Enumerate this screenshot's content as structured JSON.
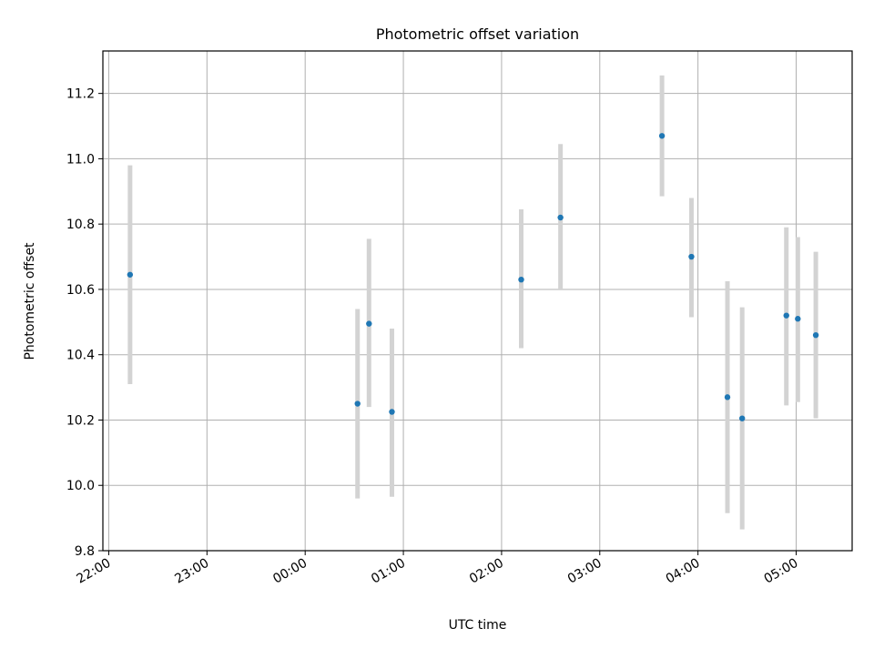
{
  "chart_data": {
    "type": "scatter",
    "title": "Photometric offset variation",
    "xlabel": "UTC time",
    "ylabel": "Photometric offset",
    "x_axis": "time (hours relative to 00:00 UTC; ticks labelled HH:MM)",
    "xlim": [
      -2.06,
      5.57
    ],
    "ylim": [
      9.8,
      11.33
    ],
    "x_ticks": [
      "22:00",
      "23:00",
      "00:00",
      "01:00",
      "02:00",
      "03:00",
      "04:00",
      "05:00"
    ],
    "x_tick_values": [
      -2,
      -1,
      0,
      1,
      2,
      3,
      4,
      5
    ],
    "y_ticks": [
      "9.8",
      "10.0",
      "10.2",
      "10.4",
      "10.6",
      "10.8",
      "11.0",
      "11.2"
    ],
    "y_tick_values": [
      9.8,
      10.0,
      10.2,
      10.4,
      10.6,
      10.8,
      11.0,
      11.2
    ],
    "grid": true,
    "marker_color": "#1f77b4",
    "errorbar_color": "#d3d3d3",
    "points": [
      {
        "time": "22:13",
        "y": 10.645,
        "ylow": 10.31,
        "yhigh": 10.98
      },
      {
        "time": "00:32",
        "y": 10.25,
        "ylow": 9.96,
        "yhigh": 10.54
      },
      {
        "time": "00:39",
        "y": 10.495,
        "ylow": 10.24,
        "yhigh": 10.755
      },
      {
        "time": "00:53",
        "y": 10.225,
        "ylow": 9.965,
        "yhigh": 10.48
      },
      {
        "time": "02:12",
        "y": 10.63,
        "ylow": 10.42,
        "yhigh": 10.845
      },
      {
        "time": "02:36",
        "y": 10.82,
        "ylow": 10.6,
        "yhigh": 11.045
      },
      {
        "time": "03:38",
        "y": 11.07,
        "ylow": 10.885,
        "yhigh": 11.255
      },
      {
        "time": "03:56",
        "y": 10.7,
        "ylow": 10.515,
        "yhigh": 10.88
      },
      {
        "time": "04:18",
        "y": 10.27,
        "ylow": 9.915,
        "yhigh": 10.625
      },
      {
        "time": "04:27",
        "y": 10.205,
        "ylow": 9.865,
        "yhigh": 10.545
      },
      {
        "time": "04:54",
        "y": 10.52,
        "ylow": 10.245,
        "yhigh": 10.79
      },
      {
        "time": "05:01",
        "y": 10.51,
        "ylow": 10.255,
        "yhigh": 10.76
      },
      {
        "time": "05:12",
        "y": 10.46,
        "ylow": 10.205,
        "yhigh": 10.715
      }
    ]
  }
}
